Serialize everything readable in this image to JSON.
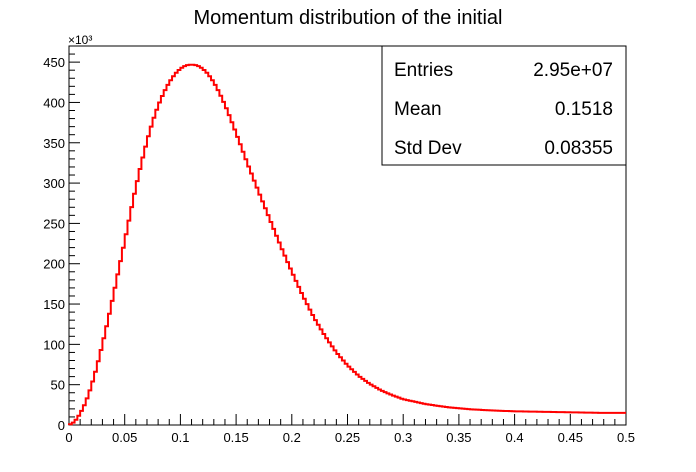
{
  "chart_data": {
    "type": "histogram",
    "title": "Momentum distribution of the initial",
    "xlabel": "",
    "ylabel": "",
    "y_multiplier": "×10³",
    "xlim": [
      0,
      0.5
    ],
    "ylim": [
      0,
      470
    ],
    "x_ticks": [
      "0",
      "0.05",
      "0.1",
      "0.15",
      "0.2",
      "0.25",
      "0.3",
      "0.35",
      "0.4",
      "0.45",
      "0.5"
    ],
    "x_tick_values": [
      0,
      0.05,
      0.1,
      0.15,
      0.2,
      0.25,
      0.3,
      0.35,
      0.4,
      0.45,
      0.5
    ],
    "y_ticks": [
      "0",
      "50",
      "100",
      "150",
      "200",
      "250",
      "300",
      "350",
      "400",
      "450"
    ],
    "y_tick_values": [
      0,
      50,
      100,
      150,
      200,
      250,
      300,
      350,
      400,
      450
    ],
    "line_color": "#ff0000",
    "bin_width": 0.0025,
    "curve": [
      [
        0.0,
        0
      ],
      [
        0.005,
        4
      ],
      [
        0.01,
        14
      ],
      [
        0.015,
        28
      ],
      [
        0.02,
        48
      ],
      [
        0.025,
        72
      ],
      [
        0.03,
        100
      ],
      [
        0.035,
        130
      ],
      [
        0.04,
        162
      ],
      [
        0.045,
        195
      ],
      [
        0.05,
        228
      ],
      [
        0.055,
        262
      ],
      [
        0.06,
        295
      ],
      [
        0.065,
        325
      ],
      [
        0.07,
        352
      ],
      [
        0.075,
        376
      ],
      [
        0.08,
        396
      ],
      [
        0.085,
        412
      ],
      [
        0.09,
        425
      ],
      [
        0.095,
        435
      ],
      [
        0.1,
        442
      ],
      [
        0.105,
        446
      ],
      [
        0.11,
        447
      ],
      [
        0.115,
        446
      ],
      [
        0.12,
        442
      ],
      [
        0.125,
        435
      ],
      [
        0.13,
        425
      ],
      [
        0.135,
        412
      ],
      [
        0.14,
        397
      ],
      [
        0.145,
        380
      ],
      [
        0.15,
        362
      ],
      [
        0.16,
        325
      ],
      [
        0.17,
        290
      ],
      [
        0.18,
        256
      ],
      [
        0.19,
        222
      ],
      [
        0.2,
        190
      ],
      [
        0.21,
        160
      ],
      [
        0.22,
        133
      ],
      [
        0.23,
        110
      ],
      [
        0.24,
        90
      ],
      [
        0.25,
        74
      ],
      [
        0.26,
        61
      ],
      [
        0.27,
        51
      ],
      [
        0.28,
        43
      ],
      [
        0.29,
        37
      ],
      [
        0.3,
        32
      ],
      [
        0.32,
        26
      ],
      [
        0.34,
        22
      ],
      [
        0.36,
        19.5
      ],
      [
        0.38,
        18
      ],
      [
        0.4,
        17
      ],
      [
        0.42,
        16.5
      ],
      [
        0.44,
        16
      ],
      [
        0.46,
        15.5
      ],
      [
        0.48,
        15
      ],
      [
        0.5,
        15
      ]
    ],
    "stats": [
      {
        "label": "Entries",
        "value": "2.95e+07"
      },
      {
        "label": "Mean",
        "value": "0.1518"
      },
      {
        "label": "Std Dev",
        "value": "0.08355"
      }
    ]
  }
}
